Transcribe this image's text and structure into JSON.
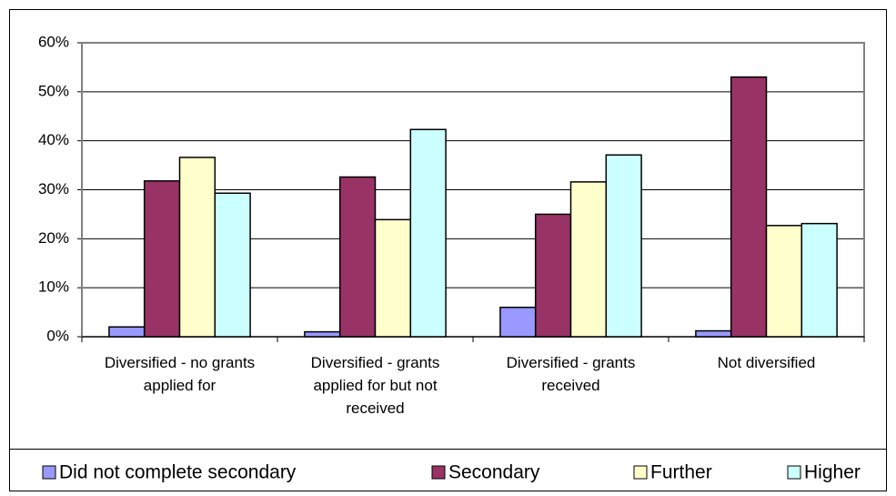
{
  "chart_data": {
    "type": "bar",
    "categories": [
      "Diversified - no grants applied for",
      "Diversified - grants applied for but not received",
      "Diversified - grants received",
      "Not diversified"
    ],
    "series": [
      {
        "name": "Did not complete secondary",
        "color": "#9999ff",
        "values": [
          2,
          1,
          6,
          1.2
        ]
      },
      {
        "name": "Secondary",
        "color": "#993366",
        "values": [
          31.8,
          32.6,
          25,
          53
        ]
      },
      {
        "name": "Further",
        "color": "#ffffcc",
        "values": [
          36.6,
          23.9,
          31.6,
          22.7
        ]
      },
      {
        "name": "Higher",
        "color": "#ccffff",
        "values": [
          29.3,
          42.3,
          37.1,
          23.1
        ]
      }
    ],
    "ylim": [
      0,
      60
    ],
    "yticks": [
      {
        "value": 0,
        "label": "0%"
      },
      {
        "value": 10,
        "label": "10%"
      },
      {
        "value": 20,
        "label": "20%"
      },
      {
        "value": 30,
        "label": "30%"
      },
      {
        "value": 40,
        "label": "40%"
      },
      {
        "value": 50,
        "label": "50%"
      },
      {
        "value": 60,
        "label": "60%"
      }
    ],
    "grid": true,
    "legend": "bottom"
  }
}
